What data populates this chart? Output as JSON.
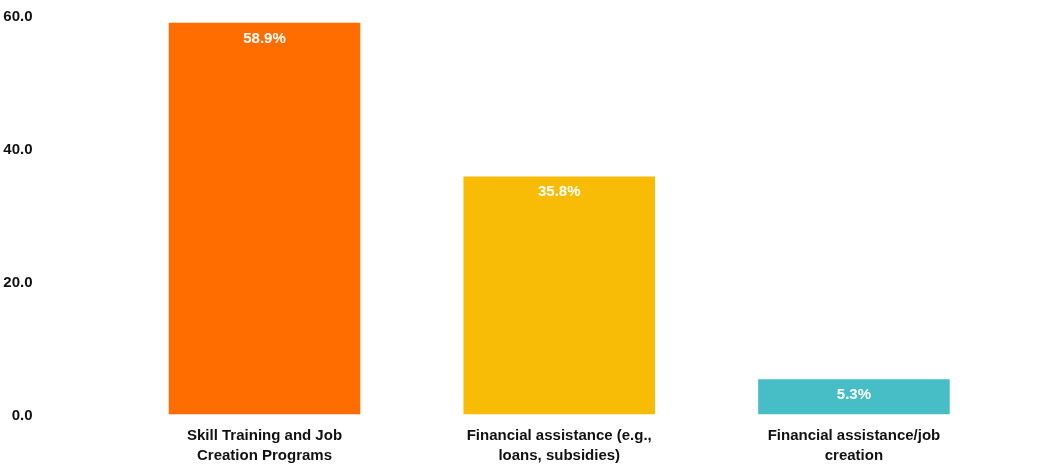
{
  "chart_data": {
    "type": "bar",
    "categories": [
      "Skill Training and Job Creation Programs",
      "Financial assistance (e.g., loans, subsidies)",
      "Financial assistance/job creation"
    ],
    "values": [
      58.9,
      35.8,
      5.3
    ],
    "value_labels": [
      "58.9%",
      "35.8%",
      "5.3%"
    ],
    "colors": [
      "#ff6d00",
      "#f9bc06",
      "#47bdc6"
    ],
    "ylim": [
      0,
      60
    ],
    "yticks": [
      {
        "value": 0,
        "label": "0.0"
      },
      {
        "value": 20,
        "label": "20.0"
      },
      {
        "value": 40,
        "label": "40.0"
      },
      {
        "value": 60,
        "label": "60.0"
      }
    ],
    "grid": false
  }
}
